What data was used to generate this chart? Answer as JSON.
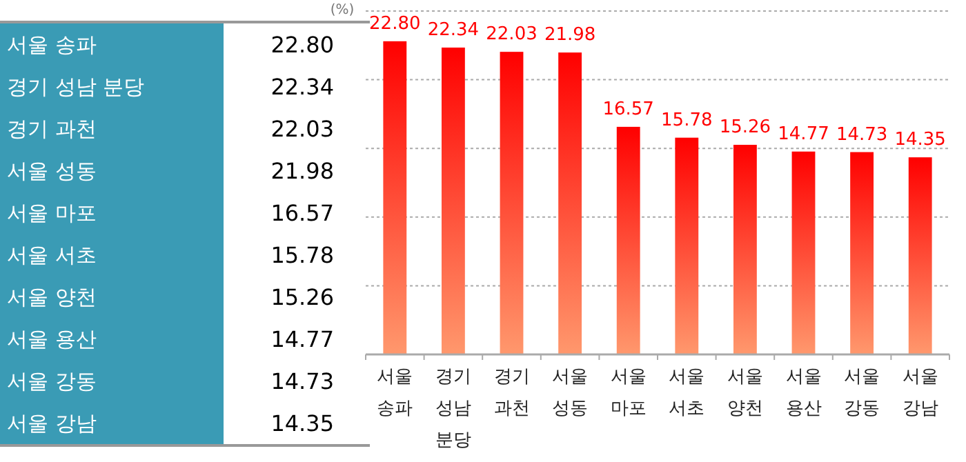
{
  "chart_data": {
    "type": "bar",
    "ylabel": "(%)",
    "categories": [
      "서울 송파",
      "경기 성남 분당",
      "경기 과천",
      "서울 성동",
      "서울 마포",
      "서울 서초",
      "서울 양천",
      "서울 용산",
      "서울 강동",
      "서울 강남"
    ],
    "values": [
      22.8,
      22.34,
      22.03,
      21.98,
      16.57,
      15.78,
      15.26,
      14.77,
      14.73,
      14.35
    ],
    "value_labels": [
      "22.80",
      "22.34",
      "22.03",
      "21.98",
      "16.57",
      "15.78",
      "15.26",
      "14.77",
      "14.73",
      "14.35"
    ],
    "color": "#ff0000",
    "ylim": [
      0,
      25
    ],
    "yticks": [
      {
        "value": 0,
        "label": null
      },
      {
        "value": 5,
        "label": null
      },
      {
        "value": 10,
        "label": null
      },
      {
        "value": 15,
        "label": null
      },
      {
        "value": 20,
        "label": null
      },
      {
        "value": 25,
        "label": null
      }
    ],
    "grid": "y",
    "tick_labels": "x"
  }
}
